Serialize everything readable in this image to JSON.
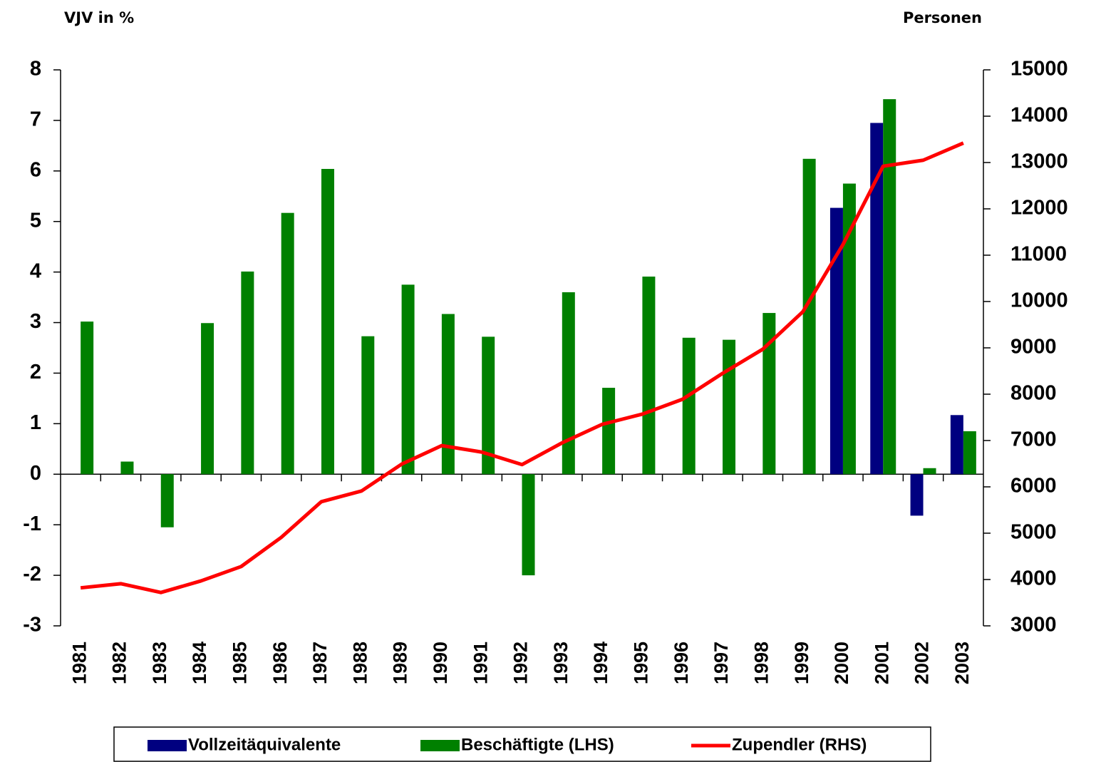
{
  "chart_data": {
    "type": "bar",
    "y_label": "VJV in %",
    "y2_label": "Personen",
    "categories": [
      "1981",
      "1982",
      "1983",
      "1984",
      "1985",
      "1986",
      "1987",
      "1988",
      "1989",
      "1990",
      "1991",
      "1992",
      "1993",
      "1994",
      "1995",
      "1996",
      "1997",
      "1998",
      "1999",
      "2000",
      "2001",
      "2002",
      "2003"
    ],
    "series": [
      {
        "name": "Vollzeitäquivalente",
        "type": "bar",
        "color": "#000080",
        "values": [
          null,
          null,
          null,
          null,
          null,
          null,
          null,
          null,
          null,
          null,
          null,
          null,
          null,
          null,
          null,
          null,
          null,
          null,
          null,
          5.27,
          6.95,
          -0.82,
          1.17
        ]
      },
      {
        "name": "Beschäftigte (LHS)",
        "type": "bar",
        "color": "#008000",
        "values": [
          3.02,
          0.25,
          -1.05,
          2.99,
          4.01,
          5.17,
          6.04,
          2.73,
          3.75,
          3.17,
          2.72,
          -2.0,
          3.6,
          1.71,
          3.91,
          2.7,
          2.66,
          3.19,
          6.24,
          5.75,
          7.42,
          0.12,
          0.85
        ]
      },
      {
        "name": "Zupendler (RHS)",
        "type": "line",
        "axis": "y2",
        "color": "#ff0000",
        "values": [
          3820,
          3910,
          3720,
          3970,
          4280,
          4910,
          5680,
          5910,
          6490,
          6890,
          6750,
          6480,
          6950,
          7350,
          7570,
          7890,
          8450,
          8970,
          9780,
          11230,
          12920,
          13050,
          13420
        ]
      }
    ],
    "ylim": [
      -3,
      8
    ],
    "yticks": [
      -3,
      -2,
      -1,
      0,
      1,
      2,
      3,
      4,
      5,
      6,
      7,
      8
    ],
    "y2lim": [
      3000,
      15000
    ],
    "y2ticks": [
      3000,
      4000,
      5000,
      6000,
      7000,
      8000,
      9000,
      10000,
      11000,
      12000,
      13000,
      14000,
      15000
    ],
    "legend": "bottom"
  }
}
